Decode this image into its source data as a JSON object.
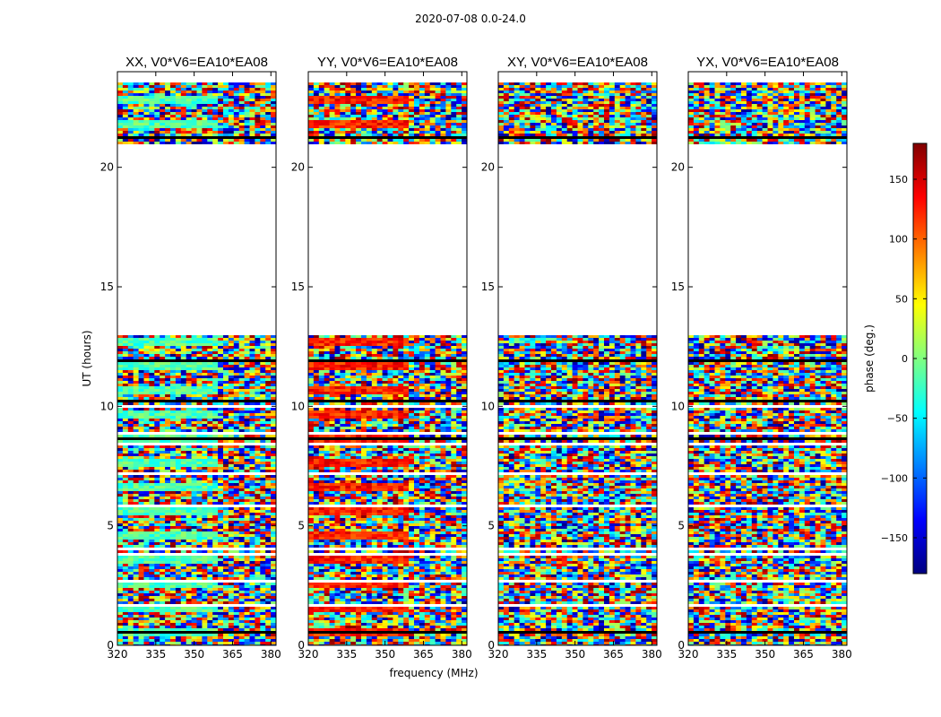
{
  "figure_title": "2020-07-08 0.0-24.0",
  "chart_data": {
    "type": "heatmap",
    "title": "2020-07-08 0.0-24.0",
    "xlabel": "frequency (MHz)",
    "ylabel": "UT (hours)",
    "xlim": [
      320,
      382
    ],
    "ylim": [
      0,
      24
    ],
    "xticks": [
      320,
      335,
      350,
      365,
      380
    ],
    "yticks": [
      0,
      5,
      10,
      15,
      20
    ],
    "panels": [
      {
        "id": "xx",
        "title": "XX, V0*V6=EA10*EA08",
        "show_ylabel": true
      },
      {
        "id": "yy",
        "title": "YY, V0*V6=EA10*EA08",
        "show_ylabel": false
      },
      {
        "id": "xy",
        "title": "XY, V0*V6=EA10*EA08",
        "show_ylabel": false
      },
      {
        "id": "yx",
        "title": "YX, V0*V6=EA10*EA08",
        "show_ylabel": false
      }
    ],
    "data_gaps_hours": [
      [
        13.0,
        21.0
      ]
    ],
    "colorbar": {
      "label": "phase (deg.)",
      "range": [
        -180,
        180
      ],
      "ticks": [
        150,
        100,
        50,
        0,
        -50,
        -100,
        -150
      ],
      "tick_labels": [
        "150",
        "100",
        "50",
        "0",
        "−50",
        "−100",
        "−150"
      ],
      "colormap": "jet"
    }
  },
  "colors": {
    "jet": [
      "#00007f",
      "#0000ff",
      "#007fff",
      "#00ffff",
      "#7fff7f",
      "#ffff00",
      "#ff7f00",
      "#ff0000",
      "#7f0000"
    ],
    "axes": "#000000",
    "background": "#ffffff"
  }
}
